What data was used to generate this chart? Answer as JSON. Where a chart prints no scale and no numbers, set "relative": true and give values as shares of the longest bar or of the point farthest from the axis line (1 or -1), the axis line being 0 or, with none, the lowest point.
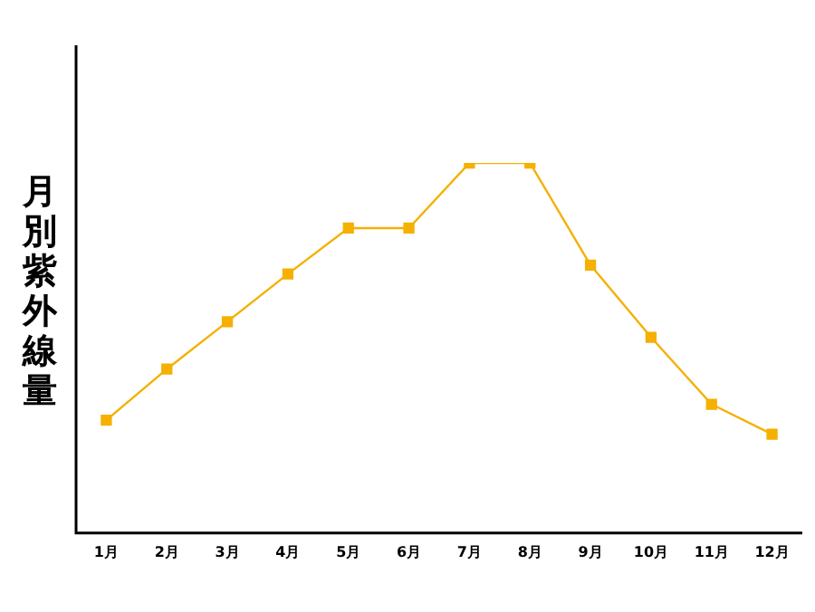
{
  "chart_data": {
    "type": "line",
    "ylabel": "月別紫外線量",
    "relative": true,
    "categories": [
      "1月",
      "2月",
      "3月",
      "4月",
      "5月",
      "6月",
      "7月",
      "8月",
      "9月",
      "10月",
      "11月",
      "12月"
    ],
    "series": [
      {
        "color": "#f5b000",
        "values": [
          0.305,
          0.443,
          0.571,
          0.7,
          0.824,
          0.824,
          1,
          1,
          0.724,
          0.529,
          0.348,
          0.267
        ]
      }
    ],
    "grid": false,
    "legend": false,
    "marker": "square",
    "line_style": "solid"
  }
}
